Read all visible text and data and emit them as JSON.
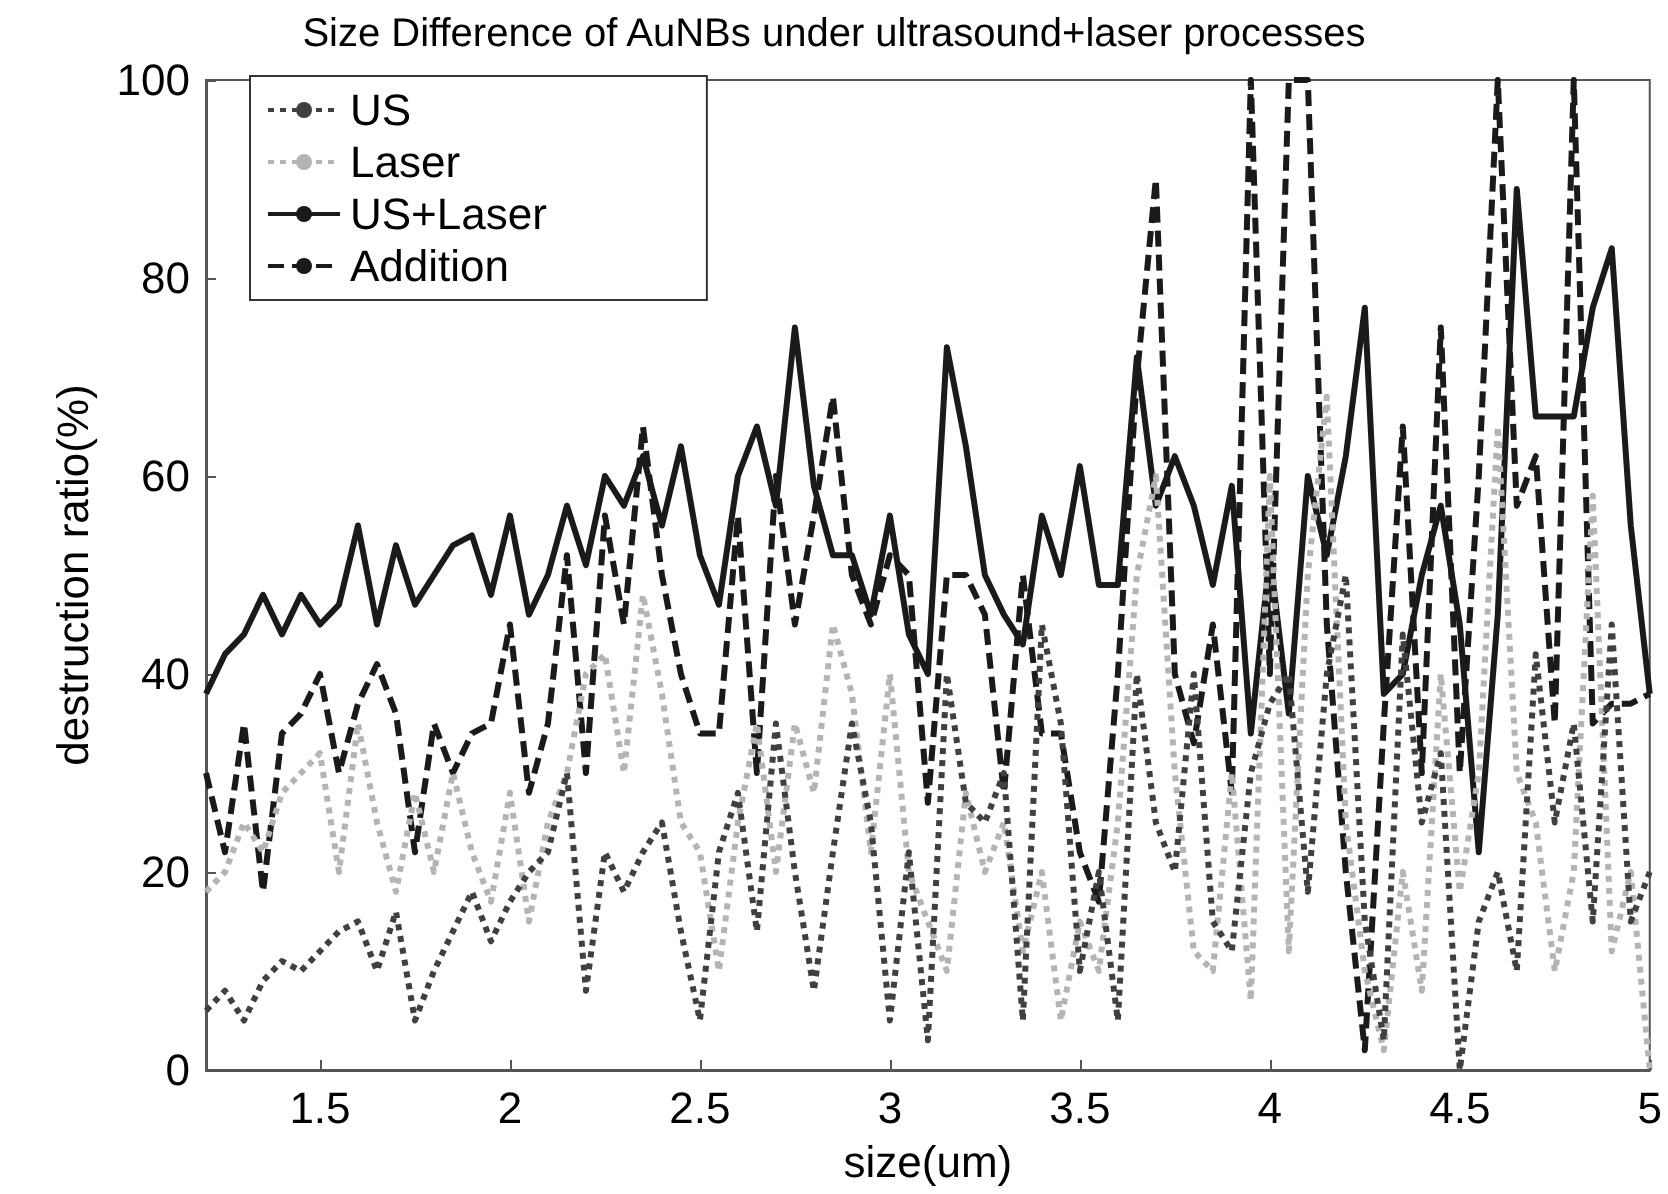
{
  "chart_data": {
    "type": "line",
    "title": "Size Difference of AuNBs under ultrasound+laser processes",
    "xlabel": "size(um)",
    "ylabel": "destruction ratio(%)",
    "x": [
      1.2,
      1.25,
      1.3,
      1.35,
      1.4,
      1.45,
      1.5,
      1.55,
      1.6,
      1.65,
      1.7,
      1.75,
      1.8,
      1.85,
      1.9,
      1.95,
      2.0,
      2.05,
      2.1,
      2.15,
      2.2,
      2.25,
      2.3,
      2.35,
      2.4,
      2.45,
      2.5,
      2.55,
      2.6,
      2.65,
      2.7,
      2.75,
      2.8,
      2.85,
      2.9,
      2.95,
      3.0,
      3.05,
      3.1,
      3.15,
      3.2,
      3.25,
      3.3,
      3.35,
      3.4,
      3.45,
      3.5,
      3.55,
      3.6,
      3.65,
      3.7,
      3.75,
      3.8,
      3.85,
      3.9,
      3.95,
      4.0,
      4.05,
      4.1,
      4.15,
      4.2,
      4.25,
      4.3,
      4.35,
      4.4,
      4.45,
      4.5,
      4.55,
      4.6,
      4.65,
      4.7,
      4.75,
      4.8,
      4.85,
      4.9,
      4.95,
      5.0
    ],
    "series": [
      {
        "name": "US",
        "color": "#404040",
        "line_style": "dotted",
        "values": [
          6,
          8,
          5,
          9,
          11,
          10,
          12,
          14,
          15,
          10,
          16,
          5,
          10,
          14,
          18,
          13,
          17,
          20,
          22,
          30,
          8,
          22,
          18,
          22,
          25,
          14,
          5,
          22,
          28,
          14,
          35,
          20,
          8,
          22,
          35,
          25,
          5,
          22,
          3,
          40,
          27,
          25,
          30,
          5,
          45,
          35,
          10,
          20,
          5,
          40,
          25,
          20,
          40,
          15,
          12,
          30,
          37,
          40,
          18,
          40,
          50,
          15,
          3,
          44,
          25,
          32,
          0,
          15,
          20,
          10,
          42,
          25,
          35,
          15,
          45,
          15,
          20
        ]
      },
      {
        "name": "Laser",
        "color": "#b4b4b4",
        "line_style": "dotted",
        "values": [
          18,
          20,
          25,
          22,
          28,
          30,
          32,
          20,
          35,
          25,
          18,
          28,
          20,
          30,
          22,
          17,
          28,
          15,
          25,
          30,
          40,
          42,
          30,
          48,
          38,
          25,
          22,
          10,
          25,
          35,
          20,
          35,
          28,
          45,
          38,
          22,
          40,
          20,
          15,
          10,
          28,
          20,
          25,
          12,
          20,
          5,
          15,
          10,
          25,
          50,
          60,
          30,
          12,
          10,
          30,
          7,
          60,
          12,
          50,
          68,
          25,
          10,
          2,
          20,
          8,
          40,
          18,
          30,
          65,
          30,
          25,
          10,
          20,
          58,
          12,
          20,
          0
        ]
      },
      {
        "name": "US+Laser",
        "color": "#1a1a1a",
        "line_style": "solid",
        "values": [
          38,
          42,
          44,
          48,
          44,
          48,
          45,
          47,
          55,
          45,
          53,
          47,
          50,
          53,
          54,
          48,
          56,
          46,
          50,
          57,
          51,
          60,
          57,
          62,
          55,
          63,
          52,
          47,
          60,
          65,
          57,
          75,
          59,
          52,
          52,
          46,
          56,
          44,
          40,
          73,
          63,
          50,
          46,
          43,
          56,
          50,
          61,
          49,
          49,
          72,
          57,
          62,
          57,
          49,
          59,
          34,
          52,
          36,
          60,
          52,
          62,
          77,
          38,
          40,
          50,
          57,
          45,
          22,
          46,
          89,
          66,
          66,
          66,
          77,
          83,
          55,
          38
        ]
      },
      {
        "name": "Addition",
        "color": "#1a1a1a",
        "line_style": "dashed",
        "values": [
          30,
          22,
          35,
          18,
          34,
          36,
          40,
          30,
          37,
          41,
          36,
          22,
          35,
          30,
          34,
          35,
          45,
          28,
          35,
          52,
          30,
          56,
          45,
          65,
          50,
          40,
          34,
          34,
          56,
          30,
          60,
          45,
          56,
          68,
          50,
          45,
          52,
          50,
          27,
          50,
          50,
          46,
          28,
          50,
          34,
          34,
          22,
          17,
          40,
          70,
          90,
          40,
          33,
          45,
          28,
          100,
          40,
          100,
          100,
          45,
          20,
          2,
          35,
          65,
          30,
          75,
          30,
          60,
          100,
          57,
          62,
          35,
          100,
          35,
          37,
          37,
          38
        ]
      }
    ],
    "xlim": [
      1.2,
      5
    ],
    "xticks": [
      1.5,
      2,
      2.5,
      3,
      3.5,
      4,
      4.5,
      5
    ],
    "ylim": [
      0,
      100
    ],
    "yticks": [
      0,
      20,
      40,
      60,
      80,
      100
    ],
    "grid": false,
    "legend": "top left",
    "marker": "none"
  }
}
